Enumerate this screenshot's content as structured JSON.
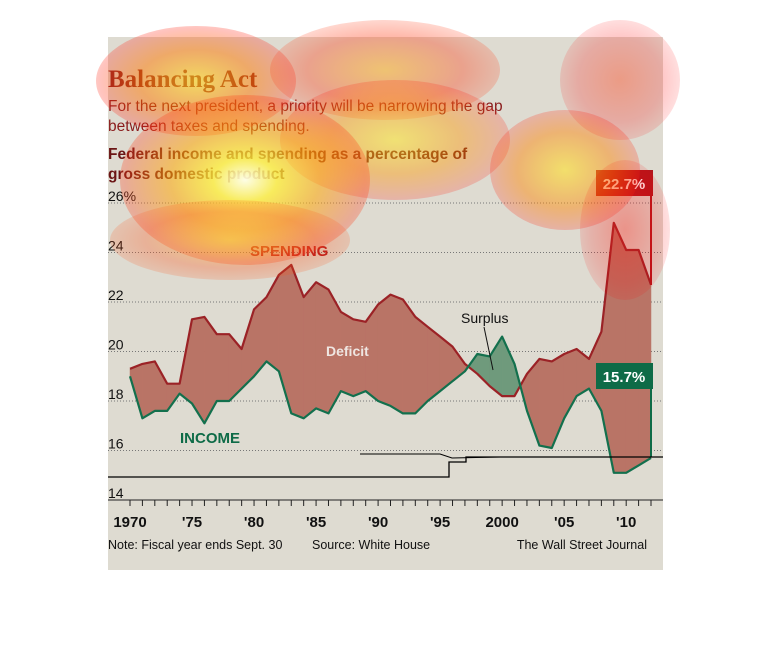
{
  "title": "Balancing Act",
  "subtitle": "For the next president, a priority will be narrowing the gap between taxes and spending.",
  "subtitle_lines": [
    "For the next president, a priority will be narrowing the gap",
    "between taxes and spending."
  ],
  "chart_title_lines": [
    "Federal income and spending as a percentage of",
    "gross domestic product"
  ],
  "note": "Note: Fiscal year ends Sept. 30",
  "source": "Source: White House",
  "credit": "The Wall Street Journal",
  "colors": {
    "panel": "#dedbd1",
    "spending": "#9b2226",
    "income": "#13704d",
    "deficit_fill": "#b97466",
    "surplus_fill": "#6f9a7c",
    "title": "#8a1c1c",
    "spending_tag": "#b3161c",
    "income_tag": "#0e6b47"
  },
  "chart_data": {
    "type": "line",
    "title": "Federal income and spending as a percentage of gross domestic product",
    "ylim": [
      14,
      26
    ],
    "xlim": [
      1970,
      2012
    ],
    "y_ticks": [
      14,
      16,
      18,
      20,
      22,
      24,
      26
    ],
    "y_tick_labels": [
      "14",
      "16",
      "18",
      "20",
      "22",
      "24",
      "26%"
    ],
    "x_ticks": [
      1970,
      1975,
      1980,
      1985,
      1990,
      1995,
      2000,
      2005,
      2010
    ],
    "x_tick_labels": [
      "1970",
      "'75",
      "'80",
      "'85",
      "'90",
      "'95",
      "2000",
      "'05",
      "'10"
    ],
    "grid": "horizontal dotted",
    "annotations": [
      "Deficit",
      "Surplus"
    ],
    "series": [
      {
        "name": "SPENDING",
        "tag": "22.7%",
        "x": [
          1970,
          1971,
          1972,
          1973,
          1974,
          1975,
          1976,
          1977,
          1978,
          1979,
          1980,
          1981,
          1982,
          1983,
          1984,
          1985,
          1986,
          1987,
          1988,
          1989,
          1990,
          1991,
          1992,
          1993,
          1994,
          1995,
          1996,
          1997,
          1998,
          1999,
          2000,
          2001,
          2002,
          2003,
          2004,
          2005,
          2006,
          2007,
          2008,
          2009,
          2010,
          2011,
          2012
        ],
        "values": [
          19.3,
          19.5,
          19.6,
          18.7,
          18.7,
          21.3,
          21.4,
          20.7,
          20.7,
          20.1,
          21.7,
          22.2,
          23.1,
          23.5,
          22.2,
          22.8,
          22.5,
          21.6,
          21.3,
          21.2,
          21.9,
          22.3,
          22.1,
          21.4,
          21.0,
          20.6,
          20.2,
          19.5,
          19.1,
          18.6,
          18.2,
          18.2,
          19.1,
          19.7,
          19.6,
          19.9,
          20.1,
          19.7,
          20.8,
          25.2,
          24.1,
          24.1,
          22.7
        ]
      },
      {
        "name": "INCOME",
        "tag": "15.7%",
        "x": [
          1970,
          1971,
          1972,
          1973,
          1974,
          1975,
          1976,
          1977,
          1978,
          1979,
          1980,
          1981,
          1982,
          1983,
          1984,
          1985,
          1986,
          1987,
          1988,
          1989,
          1990,
          1991,
          1992,
          1993,
          1994,
          1995,
          1996,
          1997,
          1998,
          1999,
          2000,
          2001,
          2002,
          2003,
          2004,
          2005,
          2006,
          2007,
          2008,
          2009,
          2010,
          2011,
          2012
        ],
        "values": [
          19.0,
          17.3,
          17.6,
          17.6,
          18.3,
          17.9,
          17.1,
          18.0,
          18.0,
          18.5,
          19.0,
          19.6,
          19.2,
          17.5,
          17.3,
          17.7,
          17.5,
          18.4,
          18.2,
          18.4,
          18.0,
          17.8,
          17.5,
          17.5,
          18.0,
          18.4,
          18.8,
          19.2,
          19.9,
          19.8,
          20.6,
          19.5,
          17.6,
          16.2,
          16.1,
          17.3,
          18.2,
          18.5,
          17.6,
          15.1,
          15.1,
          15.4,
          15.7
        ]
      }
    ]
  }
}
